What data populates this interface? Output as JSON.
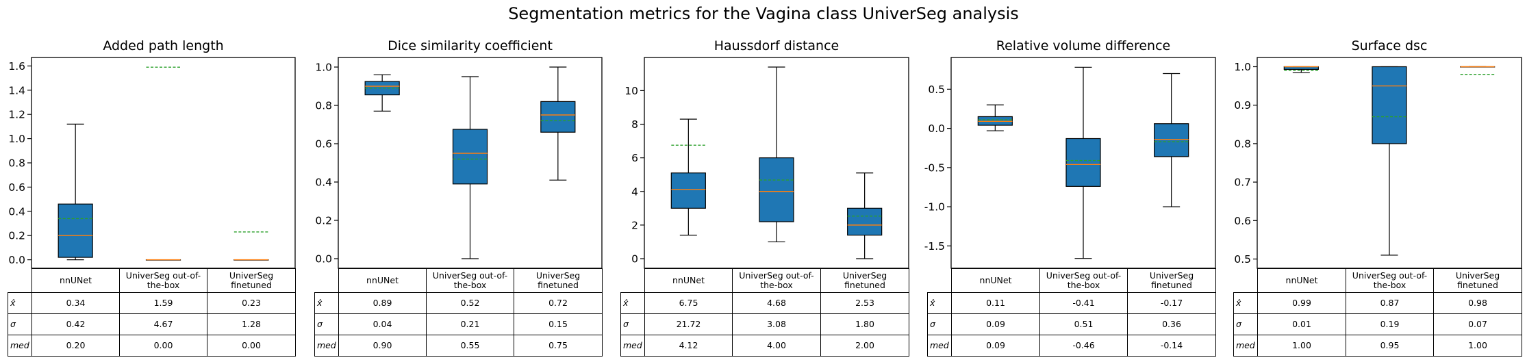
{
  "title": "Segmentation metrics for the Vagina class UniverSeg analysis",
  "style": {
    "box_fill": "#1f77b4",
    "median_color": "#ff7f0e",
    "mean_color": "#2ca02c"
  },
  "row_labels": [
    "x̂",
    "σ",
    "med"
  ],
  "chart_data": [
    {
      "type": "box",
      "title": "Added path length",
      "categories": [
        "nnUNet",
        "UniverSeg out-of-the-box",
        "UniverSeg finetuned"
      ],
      "ylim": [
        -0.07,
        1.67
      ],
      "yticks": [
        0.0,
        0.2,
        0.4,
        0.6,
        0.8,
        1.0,
        1.2,
        1.4,
        1.6
      ],
      "tick_decimals": 1,
      "boxes": [
        {
          "whislo": 0.0,
          "q1": 0.02,
          "med": 0.2,
          "q3": 0.46,
          "whishi": 1.12,
          "mean": 0.34
        },
        {
          "whislo": 0.0,
          "q1": 0.0,
          "med": 0.0,
          "q3": 0.0,
          "whishi": 0.0,
          "mean": 1.59
        },
        {
          "whislo": 0.0,
          "q1": 0.0,
          "med": 0.0,
          "q3": 0.0,
          "whishi": 0.0,
          "mean": 0.23
        }
      ],
      "table": [
        [
          "0.34",
          "1.59",
          "0.23"
        ],
        [
          "0.42",
          "4.67",
          "1.28"
        ],
        [
          "0.20",
          "0.00",
          "0.00"
        ]
      ]
    },
    {
      "type": "box",
      "title": "Dice similarity coefficient",
      "categories": [
        "nnUNet",
        "UniverSeg out-of-the-box",
        "UniverSeg finetuned"
      ],
      "ylim": [
        -0.05,
        1.05
      ],
      "yticks": [
        0.0,
        0.2,
        0.4,
        0.6,
        0.8,
        1.0
      ],
      "tick_decimals": 1,
      "boxes": [
        {
          "whislo": 0.77,
          "q1": 0.855,
          "med": 0.9,
          "q3": 0.925,
          "whishi": 0.96,
          "mean": 0.89
        },
        {
          "whislo": 0.0,
          "q1": 0.39,
          "med": 0.55,
          "q3": 0.675,
          "whishi": 0.95,
          "mean": 0.52
        },
        {
          "whislo": 0.41,
          "q1": 0.66,
          "med": 0.75,
          "q3": 0.82,
          "whishi": 1.0,
          "mean": 0.72
        }
      ],
      "table": [
        [
          "0.89",
          "0.52",
          "0.72"
        ],
        [
          "0.04",
          "0.21",
          "0.15"
        ],
        [
          "0.90",
          "0.55",
          "0.75"
        ]
      ]
    },
    {
      "type": "box",
      "title": "Haussdorf distance",
      "categories": [
        "nnUNet",
        "UniverSeg out-of-the-box",
        "UniverSeg finetuned"
      ],
      "ylim": [
        -0.57,
        11.97
      ],
      "yticks": [
        0,
        2,
        4,
        6,
        8,
        10
      ],
      "tick_decimals": 0,
      "boxes": [
        {
          "whislo": 1.4,
          "q1": 3.0,
          "med": 4.12,
          "q3": 5.1,
          "whishi": 8.3,
          "mean": 6.75
        },
        {
          "whislo": 1.0,
          "q1": 2.2,
          "med": 4.0,
          "q3": 6.0,
          "whishi": 11.4,
          "mean": 4.68
        },
        {
          "whislo": 0.0,
          "q1": 1.4,
          "med": 2.0,
          "q3": 3.0,
          "whishi": 5.1,
          "mean": 2.53
        }
      ],
      "table": [
        [
          "6.75",
          "4.68",
          "2.53"
        ],
        [
          "21.72",
          "3.08",
          "1.80"
        ],
        [
          "4.12",
          "4.00",
          "2.00"
        ]
      ]
    },
    {
      "type": "box",
      "title": "Relative volume difference",
      "categories": [
        "nnUNet",
        "UniverSeg out-of-the-box",
        "UniverSeg finetuned"
      ],
      "ylim": [
        -1.785,
        0.905
      ],
      "yticks": [
        -1.5,
        -1.0,
        -0.5,
        0.0,
        0.5
      ],
      "tick_decimals": 1,
      "boxes": [
        {
          "whislo": -0.03,
          "q1": 0.04,
          "med": 0.09,
          "q3": 0.15,
          "whishi": 0.3,
          "mean": 0.11
        },
        {
          "whislo": -1.66,
          "q1": -0.74,
          "med": -0.46,
          "q3": -0.13,
          "whishi": 0.78,
          "mean": -0.41
        },
        {
          "whislo": -1.0,
          "q1": -0.36,
          "med": -0.14,
          "q3": 0.06,
          "whishi": 0.7,
          "mean": -0.17
        }
      ],
      "table": [
        [
          "0.11",
          "-0.41",
          "-0.17"
        ],
        [
          "0.09",
          "0.51",
          "0.36"
        ],
        [
          "0.09",
          "-0.46",
          "-0.14"
        ]
      ]
    },
    {
      "type": "box",
      "title": "Surface dsc",
      "categories": [
        "nnUNet",
        "UniverSeg out-of-the-box",
        "UniverSeg finetuned"
      ],
      "ylim": [
        0.476,
        1.024
      ],
      "yticks": [
        0.5,
        0.6,
        0.7,
        0.8,
        0.9,
        1.0
      ],
      "tick_decimals": 1,
      "boxes": [
        {
          "whislo": 0.985,
          "q1": 0.993,
          "med": 1.0,
          "q3": 1.0,
          "whishi": 1.0,
          "mean": 0.99
        },
        {
          "whislo": 0.51,
          "q1": 0.8,
          "med": 0.95,
          "q3": 1.0,
          "whishi": 1.0,
          "mean": 0.87
        },
        {
          "whislo": 1.0,
          "q1": 1.0,
          "med": 1.0,
          "q3": 1.0,
          "whishi": 1.0,
          "mean": 0.98
        }
      ],
      "table": [
        [
          "0.99",
          "0.87",
          "0.98"
        ],
        [
          "0.01",
          "0.19",
          "0.07"
        ],
        [
          "1.00",
          "0.95",
          "1.00"
        ]
      ]
    }
  ]
}
